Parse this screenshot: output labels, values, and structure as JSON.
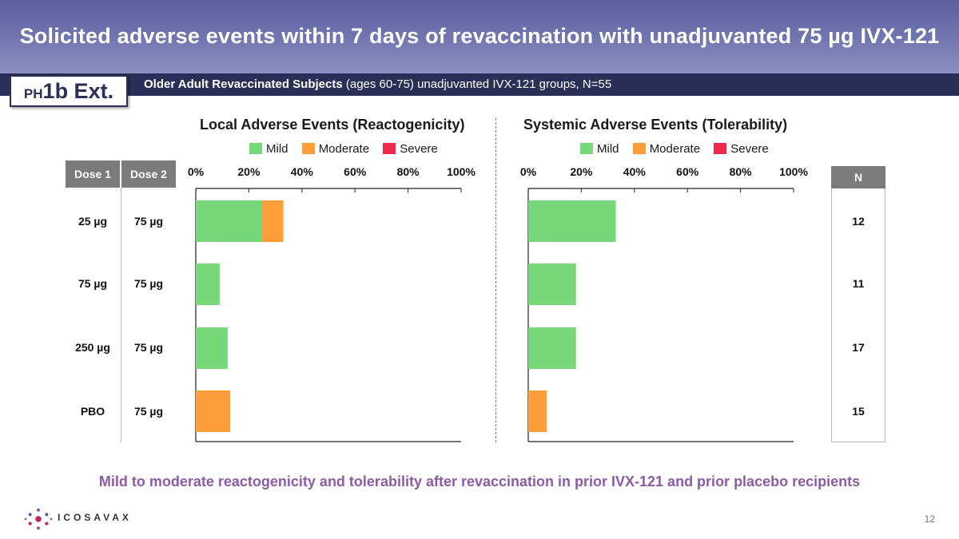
{
  "title": "Solicited adverse events within 7 days of revaccination with unadjuvanted 75 µg IVX-121",
  "badge": {
    "prefix": "PH",
    "main": "1b Ext."
  },
  "subtitle": {
    "bold": "Older Adult Revaccinated Subjects",
    "rest": " (ages 60-75) unadjuvanted IVX-121 groups, N=55"
  },
  "table": {
    "headers": {
      "dose1": "Dose 1",
      "dose2": "Dose 2",
      "n": "N"
    },
    "rows": [
      {
        "dose1": "25 µg",
        "dose2": "75 µg",
        "n": "12"
      },
      {
        "dose1": "75 µg",
        "dose2": "75 µg",
        "n": "11"
      },
      {
        "dose1": "250 µg",
        "dose2": "75 µg",
        "n": "17"
      },
      {
        "dose1": "PBO",
        "dose2": "75 µg",
        "n": "15"
      }
    ]
  },
  "legend": [
    {
      "label": "Mild",
      "color": "#77d87a"
    },
    {
      "label": "Moderate",
      "color": "#ff9e3b"
    },
    {
      "label": "Severe",
      "color": "#f0284a"
    }
  ],
  "chart_data": [
    {
      "type": "bar",
      "orientation": "horizontal",
      "stacked": true,
      "title": "Local Adverse Events (Reactogenicity)",
      "categories": [
        "25 µg / 75 µg",
        "75 µg / 75 µg",
        "250 µg / 75 µg",
        "PBO / 75 µg"
      ],
      "xlim": [
        0,
        100
      ],
      "xticks": [
        "0%",
        "20%",
        "40%",
        "60%",
        "80%",
        "100%"
      ],
      "series": [
        {
          "name": "Mild",
          "values": [
            25,
            9,
            12,
            0
          ]
        },
        {
          "name": "Moderate",
          "values": [
            8,
            0,
            0,
            13
          ]
        },
        {
          "name": "Severe",
          "values": [
            0,
            0,
            0,
            0
          ]
        }
      ]
    },
    {
      "type": "bar",
      "orientation": "horizontal",
      "stacked": true,
      "title": "Systemic Adverse Events (Tolerability)",
      "categories": [
        "25 µg / 75 µg",
        "75 µg / 75 µg",
        "250 µg / 75 µg",
        "PBO / 75 µg"
      ],
      "xlim": [
        0,
        100
      ],
      "xticks": [
        "0%",
        "20%",
        "40%",
        "60%",
        "80%",
        "100%"
      ],
      "series": [
        {
          "name": "Mild",
          "values": [
            33,
            18,
            18,
            0
          ]
        },
        {
          "name": "Moderate",
          "values": [
            0,
            0,
            0,
            7
          ]
        },
        {
          "name": "Severe",
          "values": [
            0,
            0,
            0,
            0
          ]
        }
      ]
    }
  ],
  "footer": "Mild to moderate reactogenicity and tolerability after revaccination in prior IVX-121 and prior placebo recipients",
  "brand": "ICOSAVAX",
  "page_number": "12"
}
